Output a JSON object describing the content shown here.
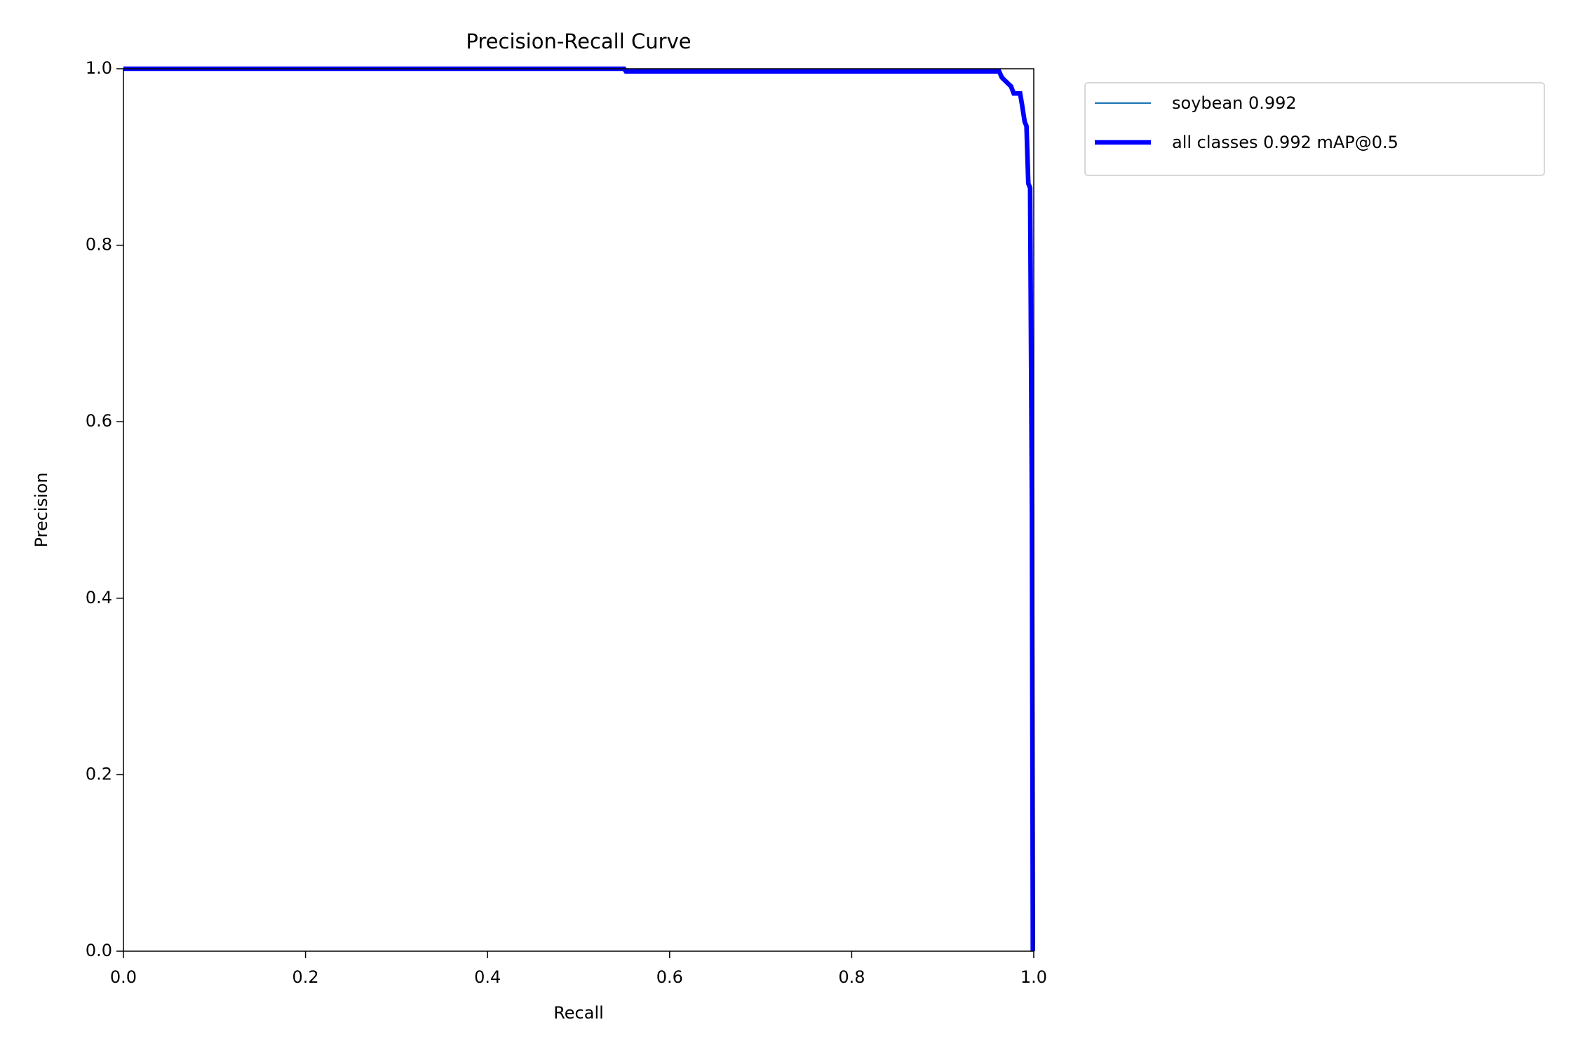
{
  "chart_data": {
    "type": "line",
    "title": "Precision-Recall Curve",
    "xlabel": "Recall",
    "ylabel": "Precision",
    "x": [
      0,
      0.55,
      0.552,
      0.962,
      0.965,
      0.97,
      0.975,
      0.978,
      0.985,
      0.987,
      0.99,
      0.992,
      0.994,
      0.996,
      0.998,
      0.999
    ],
    "series": [
      {
        "name": "soybean 0.992",
        "color": "#1f77b4",
        "linewidth": 1,
        "values": [
          1.0,
          1.0,
          0.997,
          0.997,
          0.99,
          0.985,
          0.98,
          0.972,
          0.972,
          0.96,
          0.94,
          0.935,
          0.87,
          0.865,
          0.5,
          0.0
        ]
      },
      {
        "name": "all classes 0.992 mAP@0.5",
        "color": "#0000ff",
        "linewidth": 3,
        "values": [
          1.0,
          1.0,
          0.997,
          0.997,
          0.99,
          0.985,
          0.98,
          0.972,
          0.972,
          0.96,
          0.94,
          0.935,
          0.87,
          0.865,
          0.5,
          0.0
        ]
      }
    ],
    "xlim": [
      0,
      1
    ],
    "ylim": [
      0,
      1
    ],
    "xticks": [
      {
        "value": 0,
        "label": "0.0"
      },
      {
        "value": 0.2,
        "label": "0.2"
      },
      {
        "value": 0.4,
        "label": "0.4"
      },
      {
        "value": 0.6,
        "label": "0.6"
      },
      {
        "value": 0.8,
        "label": "0.8"
      },
      {
        "value": 1,
        "label": "1.0"
      }
    ],
    "yticks": [
      {
        "value": 0,
        "label": "0.0"
      },
      {
        "value": 0.2,
        "label": "0.2"
      },
      {
        "value": 0.4,
        "label": "0.4"
      },
      {
        "value": 0.6,
        "label": "0.6"
      },
      {
        "value": 0.8,
        "label": "0.8"
      },
      {
        "value": 1,
        "label": "1.0"
      }
    ],
    "grid": false,
    "legend": "outside upper right"
  }
}
